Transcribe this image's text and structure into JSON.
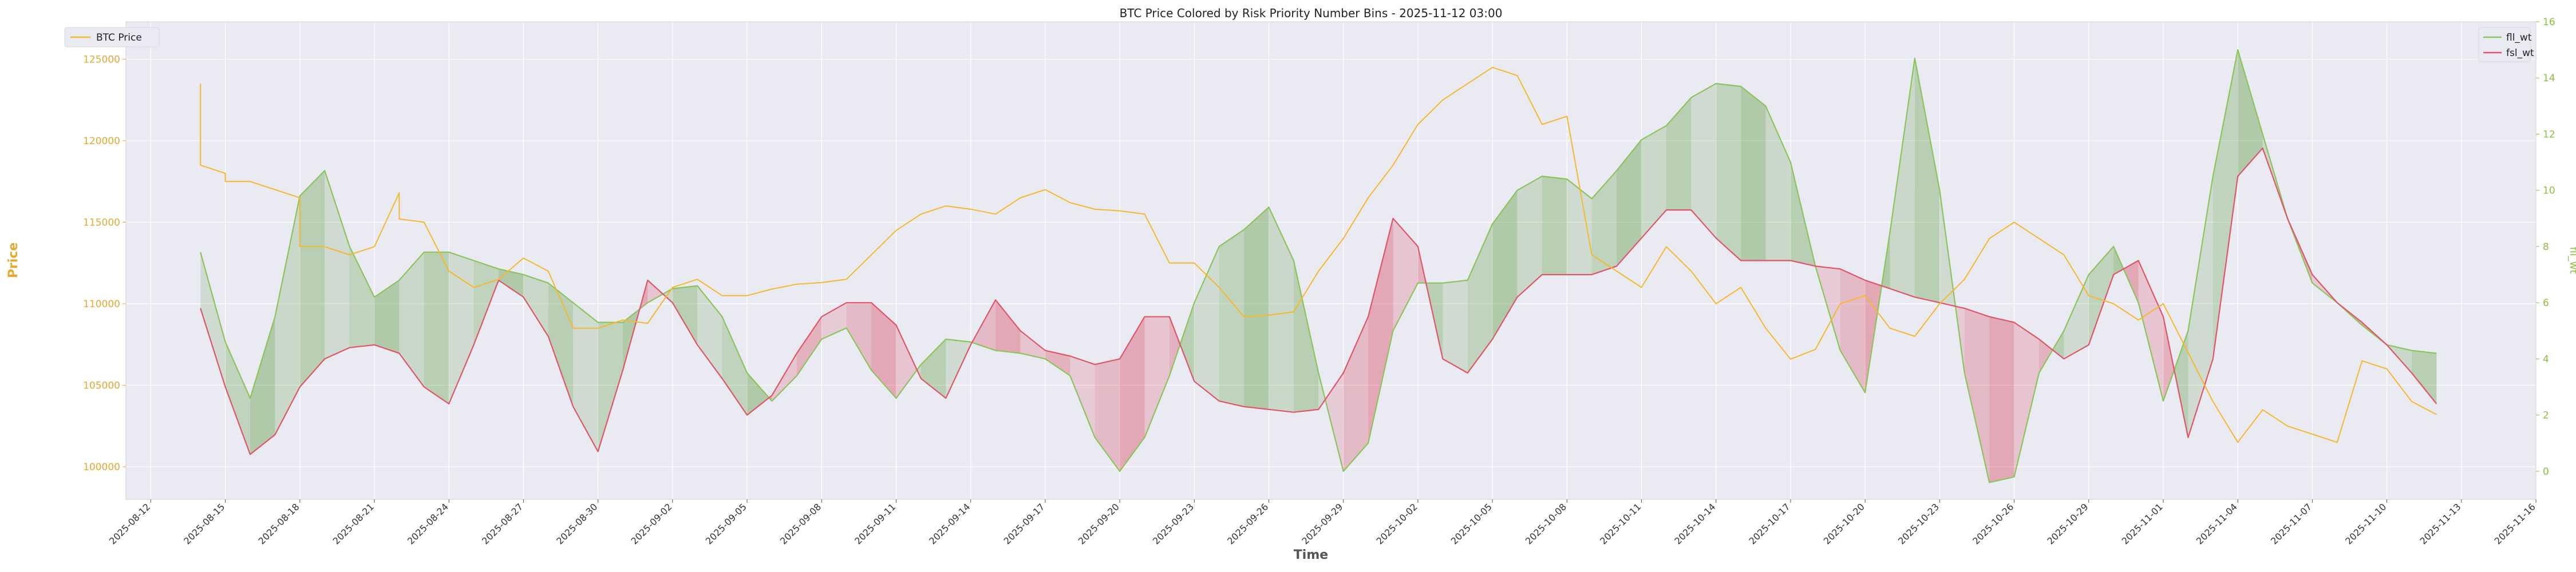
{
  "chart_data": {
    "type": "line",
    "title": "BTC Price Colored by Risk Priority Number Bins - 2025-11-12 03:00",
    "xlabel": "Time",
    "ylabel": "Price",
    "y2label": "fll_wt",
    "grid": true,
    "legend_left": {
      "placement": "top-left",
      "entries": [
        "BTC Price"
      ]
    },
    "legend_right": {
      "placement": "top-right",
      "entries": [
        "fll_wt",
        "fsl_wt"
      ]
    },
    "colors": {
      "price": "#f5b82e",
      "fll": "#8cc45a",
      "fsl": "#e0556a",
      "fill_green": "#5a9a3c",
      "fill_red": "#d9455d",
      "background": "#eaeaf2",
      "grid": "#ffffff",
      "y2_axis": "#8cbf3f"
    },
    "x_range": [
      "2025-08-11",
      "2025-11-16"
    ],
    "x_ticks": [
      "2025-08-12",
      "2025-08-15",
      "2025-08-18",
      "2025-08-21",
      "2025-08-24",
      "2025-08-27",
      "2025-08-30",
      "2025-09-02",
      "2025-09-05",
      "2025-09-08",
      "2025-09-11",
      "2025-09-14",
      "2025-09-17",
      "2025-09-20",
      "2025-09-23",
      "2025-09-26",
      "2025-09-29",
      "2025-10-02",
      "2025-10-05",
      "2025-10-08",
      "2025-10-11",
      "2025-10-14",
      "2025-10-17",
      "2025-10-20",
      "2025-10-23",
      "2025-10-26",
      "2025-10-29",
      "2025-11-01",
      "2025-11-04",
      "2025-11-07",
      "2025-11-10",
      "2025-11-13",
      "2025-11-16"
    ],
    "y_ticks": [
      100000,
      105000,
      110000,
      115000,
      120000,
      125000
    ],
    "y_range": [
      98000,
      127300
    ],
    "y2_ticks": [
      0,
      2,
      4,
      6,
      8,
      10,
      12,
      14,
      16
    ],
    "y2_range": [
      -1.0,
      16.0
    ],
    "price_series": {
      "name": "BTC Price",
      "x": [
        "2025-08-14",
        "2025-08-14",
        "2025-08-15",
        "2025-08-15",
        "2025-08-16",
        "2025-08-17",
        "2025-08-18",
        "2025-08-18",
        "2025-08-19",
        "2025-08-20",
        "2025-08-21",
        "2025-08-22",
        "2025-08-22",
        "2025-08-23",
        "2025-08-24",
        "2025-08-25",
        "2025-08-26",
        "2025-08-27",
        "2025-08-28",
        "2025-08-29",
        "2025-08-30",
        "2025-08-31",
        "2025-09-01",
        "2025-09-02",
        "2025-09-03",
        "2025-09-04",
        "2025-09-05",
        "2025-09-06",
        "2025-09-07",
        "2025-09-08",
        "2025-09-09",
        "2025-09-10",
        "2025-09-11",
        "2025-09-12",
        "2025-09-13",
        "2025-09-14",
        "2025-09-15",
        "2025-09-16",
        "2025-09-17",
        "2025-09-18",
        "2025-09-19",
        "2025-09-20",
        "2025-09-21",
        "2025-09-22",
        "2025-09-23",
        "2025-09-24",
        "2025-09-25",
        "2025-09-26",
        "2025-09-27",
        "2025-09-28",
        "2025-09-29",
        "2025-09-30",
        "2025-10-01",
        "2025-10-02",
        "2025-10-03",
        "2025-10-04",
        "2025-10-05",
        "2025-10-06",
        "2025-10-07",
        "2025-10-08",
        "2025-10-09",
        "2025-10-10",
        "2025-10-11",
        "2025-10-12",
        "2025-10-13",
        "2025-10-14",
        "2025-10-15",
        "2025-10-16",
        "2025-10-17",
        "2025-10-18",
        "2025-10-19",
        "2025-10-20",
        "2025-10-21",
        "2025-10-22",
        "2025-10-23",
        "2025-10-24",
        "2025-10-25",
        "2025-10-26",
        "2025-10-27",
        "2025-10-28",
        "2025-10-29",
        "2025-10-30",
        "2025-10-31",
        "2025-11-01",
        "2025-11-02",
        "2025-11-03",
        "2025-11-04",
        "2025-11-05",
        "2025-11-06",
        "2025-11-07",
        "2025-11-08",
        "2025-11-09",
        "2025-11-10",
        "2025-11-11",
        "2025-11-12"
      ],
      "y": [
        123500,
        118500,
        118000,
        117500,
        117500,
        117000,
        116500,
        113500,
        113500,
        113000,
        113500,
        116800,
        115200,
        115000,
        112000,
        111000,
        111500,
        112800,
        112000,
        108500,
        108500,
        109000,
        108800,
        111000,
        111500,
        110500,
        110500,
        110900,
        111200,
        111300,
        111500,
        113000,
        114500,
        115500,
        116000,
        115800,
        115500,
        116500,
        117000,
        116200,
        115800,
        115700,
        115500,
        112500,
        112500,
        111000,
        109200,
        109300,
        109500,
        112000,
        114000,
        116500,
        118500,
        121000,
        122500,
        123500,
        124500,
        124000,
        121000,
        121500,
        113000,
        112000,
        111000,
        113500,
        112000,
        110000,
        111000,
        108500,
        106600,
        107200,
        110000,
        110500,
        108500,
        108000,
        110000,
        111500,
        114000,
        115000,
        114000,
        113000,
        110500,
        110000,
        109000,
        110000,
        107000,
        104000,
        101500,
        103500,
        102500,
        102000,
        101500,
        106500,
        106000,
        104000,
        103200
      ]
    },
    "fll_wt": {
      "name": "fll_wt",
      "x": [
        "2025-08-14",
        "2025-08-15",
        "2025-08-16",
        "2025-08-17",
        "2025-08-18",
        "2025-08-19",
        "2025-08-20",
        "2025-08-21",
        "2025-08-22",
        "2025-08-23",
        "2025-08-24",
        "2025-08-25",
        "2025-08-26",
        "2025-08-27",
        "2025-08-28",
        "2025-08-29",
        "2025-08-30",
        "2025-08-31",
        "2025-09-01",
        "2025-09-02",
        "2025-09-03",
        "2025-09-04",
        "2025-09-05",
        "2025-09-06",
        "2025-09-07",
        "2025-09-08",
        "2025-09-09",
        "2025-09-10",
        "2025-09-11",
        "2025-09-12",
        "2025-09-13",
        "2025-09-14",
        "2025-09-15",
        "2025-09-16",
        "2025-09-17",
        "2025-09-18",
        "2025-09-19",
        "2025-09-20",
        "2025-09-21",
        "2025-09-22",
        "2025-09-23",
        "2025-09-24",
        "2025-09-25",
        "2025-09-26",
        "2025-09-27",
        "2025-09-28",
        "2025-09-29",
        "2025-09-30",
        "2025-10-01",
        "2025-10-02",
        "2025-10-03",
        "2025-10-04",
        "2025-10-05",
        "2025-10-06",
        "2025-10-07",
        "2025-10-08",
        "2025-10-09",
        "2025-10-10",
        "2025-10-11",
        "2025-10-12",
        "2025-10-13",
        "2025-10-14",
        "2025-10-15",
        "2025-10-16",
        "2025-10-17",
        "2025-10-18",
        "2025-10-19",
        "2025-10-20",
        "2025-10-21",
        "2025-10-22",
        "2025-10-23",
        "2025-10-24",
        "2025-10-25",
        "2025-10-26",
        "2025-10-27",
        "2025-10-28",
        "2025-10-29",
        "2025-10-30",
        "2025-10-31",
        "2025-11-01",
        "2025-11-02",
        "2025-11-03",
        "2025-11-04",
        "2025-11-05",
        "2025-11-06",
        "2025-11-07",
        "2025-11-08",
        "2025-11-09",
        "2025-11-10",
        "2025-11-11",
        "2025-11-12"
      ],
      "y": [
        7.8,
        4.6,
        2.6,
        5.5,
        9.8,
        10.7,
        8.0,
        6.2,
        6.8,
        7.8,
        7.8,
        7.5,
        7.2,
        7.0,
        6.7,
        6.0,
        5.3,
        5.3,
        6.0,
        6.5,
        6.6,
        5.5,
        3.5,
        2.5,
        3.4,
        4.7,
        5.1,
        3.6,
        2.6,
        3.8,
        4.7,
        4.6,
        4.3,
        4.2,
        4.0,
        3.4,
        1.2,
        0.0,
        1.2,
        3.4,
        6.0,
        8.0,
        8.6,
        9.4,
        7.5,
        3.5,
        0.0,
        1.0,
        5.0,
        6.7,
        6.7,
        6.8,
        8.8,
        10.0,
        10.5,
        10.4,
        9.7,
        10.7,
        11.8,
        12.3,
        13.3,
        13.8,
        13.7,
        13.0,
        11.0,
        7.3,
        4.3,
        2.8,
        8.5,
        14.7,
        10.0,
        3.5,
        -0.4,
        -0.2,
        3.5,
        5.0,
        7.0,
        8.0,
        6.0,
        2.5,
        5.0,
        10.5,
        15.0,
        12.0,
        9.0,
        6.7,
        6.0,
        5.2,
        4.5,
        4.3,
        4.2
      ]
    },
    "fsl_wt": {
      "name": "fsl_wt",
      "x": [
        "2025-08-14",
        "2025-08-15",
        "2025-08-16",
        "2025-08-17",
        "2025-08-18",
        "2025-08-19",
        "2025-08-20",
        "2025-08-21",
        "2025-08-22",
        "2025-08-23",
        "2025-08-24",
        "2025-08-25",
        "2025-08-26",
        "2025-08-27",
        "2025-08-28",
        "2025-08-29",
        "2025-08-30",
        "2025-08-31",
        "2025-09-01",
        "2025-09-02",
        "2025-09-03",
        "2025-09-04",
        "2025-09-05",
        "2025-09-06",
        "2025-09-07",
        "2025-09-08",
        "2025-09-09",
        "2025-09-10",
        "2025-09-11",
        "2025-09-12",
        "2025-09-13",
        "2025-09-14",
        "2025-09-15",
        "2025-09-16",
        "2025-09-17",
        "2025-09-18",
        "2025-09-19",
        "2025-09-20",
        "2025-09-21",
        "2025-09-22",
        "2025-09-23",
        "2025-09-24",
        "2025-09-25",
        "2025-09-26",
        "2025-09-27",
        "2025-09-28",
        "2025-09-29",
        "2025-09-30",
        "2025-10-01",
        "2025-10-02",
        "2025-10-03",
        "2025-10-04",
        "2025-10-05",
        "2025-10-06",
        "2025-10-07",
        "2025-10-08",
        "2025-10-09",
        "2025-10-10",
        "2025-10-11",
        "2025-10-12",
        "2025-10-13",
        "2025-10-14",
        "2025-10-15",
        "2025-10-16",
        "2025-10-17",
        "2025-10-18",
        "2025-10-19",
        "2025-10-20",
        "2025-10-21",
        "2025-10-22",
        "2025-10-23",
        "2025-10-24",
        "2025-10-25",
        "2025-10-26",
        "2025-10-27",
        "2025-10-28",
        "2025-10-29",
        "2025-10-30",
        "2025-10-31",
        "2025-11-01",
        "2025-11-02",
        "2025-11-03",
        "2025-11-04",
        "2025-11-05",
        "2025-11-06",
        "2025-11-07",
        "2025-11-08",
        "2025-11-09",
        "2025-11-10",
        "2025-11-11",
        "2025-11-12"
      ],
      "y": [
        5.8,
        3.0,
        0.6,
        1.3,
        3.0,
        4.0,
        4.4,
        4.5,
        4.2,
        3.0,
        2.4,
        4.5,
        6.8,
        6.2,
        4.8,
        2.3,
        0.7,
        3.6,
        6.8,
        6.0,
        4.5,
        3.3,
        2.0,
        2.7,
        4.2,
        5.5,
        6.0,
        6.0,
        5.2,
        3.3,
        2.6,
        4.5,
        6.1,
        5.0,
        4.3,
        4.1,
        3.8,
        4.0,
        5.5,
        5.5,
        3.2,
        2.5,
        2.3,
        2.2,
        2.1,
        2.2,
        3.5,
        5.5,
        9.0,
        8.0,
        4.0,
        3.5,
        4.7,
        6.2,
        7.0,
        7.0,
        7.0,
        7.3,
        8.3,
        9.3,
        9.3,
        8.3,
        7.5,
        7.5,
        7.5,
        7.3,
        7.2,
        6.8,
        6.5,
        6.2,
        6.0,
        5.8,
        5.5,
        5.3,
        4.7,
        4.0,
        4.5,
        7.0,
        7.5,
        5.5,
        1.2,
        4.0,
        10.5,
        11.5,
        9.0,
        7.0,
        6.0,
        5.3,
        4.5,
        3.5,
        2.4
      ]
    }
  }
}
